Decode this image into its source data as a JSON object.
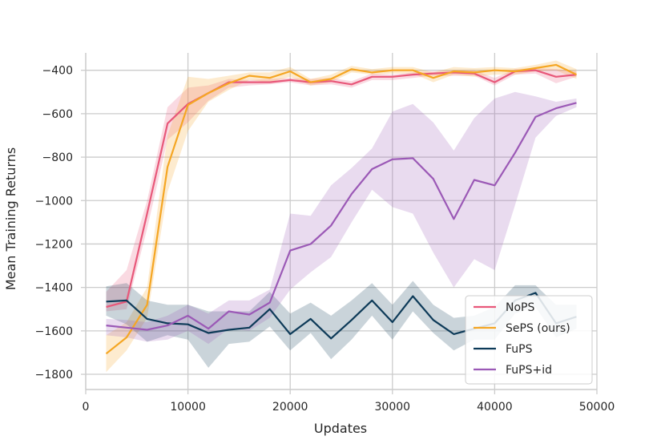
{
  "chart_data": {
    "type": "line",
    "title": "",
    "xlabel": "Updates",
    "ylabel": "Mean Training Returns",
    "xlim": [
      0,
      50000
    ],
    "ylim": [
      -1870,
      -320
    ],
    "grid": true,
    "legend_position": "bottom-right",
    "x_ticks": [
      0,
      10000,
      20000,
      30000,
      40000,
      50000
    ],
    "x_tick_labels": [
      "0",
      "10000",
      "20000",
      "30000",
      "40000",
      "50000"
    ],
    "y_ticks": [
      -400,
      -600,
      -800,
      -1000,
      -1200,
      -1400,
      -1600,
      -1800
    ],
    "y_tick_labels": [
      "−400",
      "−600",
      "−800",
      "−1000",
      "−1200",
      "−1400",
      "−1600",
      "−1800"
    ],
    "x": [
      2000,
      4000,
      6000,
      8000,
      10000,
      12000,
      14000,
      16000,
      18000,
      20000,
      22000,
      24000,
      26000,
      28000,
      30000,
      32000,
      34000,
      36000,
      38000,
      40000,
      42000,
      44000,
      46000,
      48000
    ],
    "series": [
      {
        "name": "NoPS",
        "color": "#e8587a",
        "values": [
          -1490,
          -1465,
          -1060,
          -645,
          -555,
          -505,
          -455,
          -455,
          -455,
          -445,
          -455,
          -450,
          -465,
          -430,
          -430,
          -420,
          -415,
          -410,
          -415,
          -455,
          -405,
          -400,
          -430,
          -420
        ],
        "lower": [
          -1510,
          -1500,
          -1130,
          -720,
          -640,
          -540,
          -480,
          -470,
          -465,
          -455,
          -470,
          -465,
          -480,
          -445,
          -445,
          -435,
          -425,
          -425,
          -425,
          -470,
          -420,
          -415,
          -460,
          -430
        ],
        "upper": [
          -1420,
          -1320,
          -1000,
          -570,
          -480,
          -470,
          -440,
          -445,
          -440,
          -435,
          -440,
          -435,
          -450,
          -415,
          -420,
          -410,
          -405,
          -400,
          -400,
          -435,
          -395,
          -390,
          -395,
          -405
        ]
      },
      {
        "name": "SePS (ours)",
        "color": "#f5a623",
        "values": [
          -1705,
          -1630,
          -1480,
          -845,
          -560,
          -505,
          -460,
          -425,
          -435,
          -405,
          -455,
          -440,
          -395,
          -410,
          -400,
          -400,
          -435,
          -405,
          -410,
          -400,
          -405,
          -390,
          -375,
          -420
        ],
        "lower": [
          -1790,
          -1690,
          -1540,
          -960,
          -680,
          -545,
          -490,
          -445,
          -455,
          -430,
          -470,
          -455,
          -410,
          -420,
          -415,
          -415,
          -455,
          -420,
          -430,
          -420,
          -420,
          -405,
          -400,
          -440
        ],
        "upper": [
          -1620,
          -1560,
          -1400,
          -700,
          -430,
          -440,
          -425,
          -410,
          -410,
          -385,
          -440,
          -420,
          -380,
          -395,
          -385,
          -385,
          -410,
          -385,
          -390,
          -385,
          -390,
          -375,
          -355,
          -395
        ]
      },
      {
        "name": "FuPS",
        "color": "#0d3a58",
        "values": [
          -1465,
          -1460,
          -1545,
          -1565,
          -1570,
          -1610,
          -1595,
          -1585,
          -1500,
          -1615,
          -1545,
          -1635,
          -1550,
          -1460,
          -1560,
          -1440,
          -1550,
          -1615,
          -1590,
          -1565,
          -1460,
          -1425,
          -1565,
          -1535
        ],
        "lower": [
          -1530,
          -1570,
          -1650,
          -1620,
          -1640,
          -1770,
          -1660,
          -1650,
          -1580,
          -1690,
          -1610,
          -1730,
          -1640,
          -1530,
          -1640,
          -1510,
          -1610,
          -1690,
          -1640,
          -1640,
          -1520,
          -1490,
          -1630,
          -1590
        ],
        "upper": [
          -1395,
          -1380,
          -1460,
          -1480,
          -1480,
          -1510,
          -1510,
          -1510,
          -1420,
          -1520,
          -1470,
          -1530,
          -1460,
          -1380,
          -1480,
          -1370,
          -1480,
          -1540,
          -1530,
          -1490,
          -1390,
          -1390,
          -1480,
          -1480
        ]
      },
      {
        "name": "FuPS+id",
        "color": "#9b59b6",
        "values": [
          -1575,
          -1585,
          -1595,
          -1575,
          -1530,
          -1590,
          -1510,
          -1525,
          -1470,
          -1230,
          -1200,
          -1115,
          -970,
          -855,
          -810,
          -805,
          -900,
          -1085,
          -905,
          -930,
          -780,
          -615,
          -575,
          -550
        ],
        "lower": [
          -1620,
          -1630,
          -1650,
          -1640,
          -1600,
          -1660,
          -1590,
          -1600,
          -1540,
          -1410,
          -1330,
          -1260,
          -1100,
          -950,
          -1030,
          -1060,
          -1240,
          -1400,
          -1270,
          -1320,
          -1020,
          -710,
          -610,
          -570
        ],
        "upper": [
          -1545,
          -1550,
          -1560,
          -1530,
          -1480,
          -1520,
          -1460,
          -1460,
          -1410,
          -1060,
          -1070,
          -930,
          -850,
          -760,
          -590,
          -555,
          -640,
          -770,
          -620,
          -530,
          -500,
          -520,
          -545,
          -530
        ]
      }
    ]
  }
}
